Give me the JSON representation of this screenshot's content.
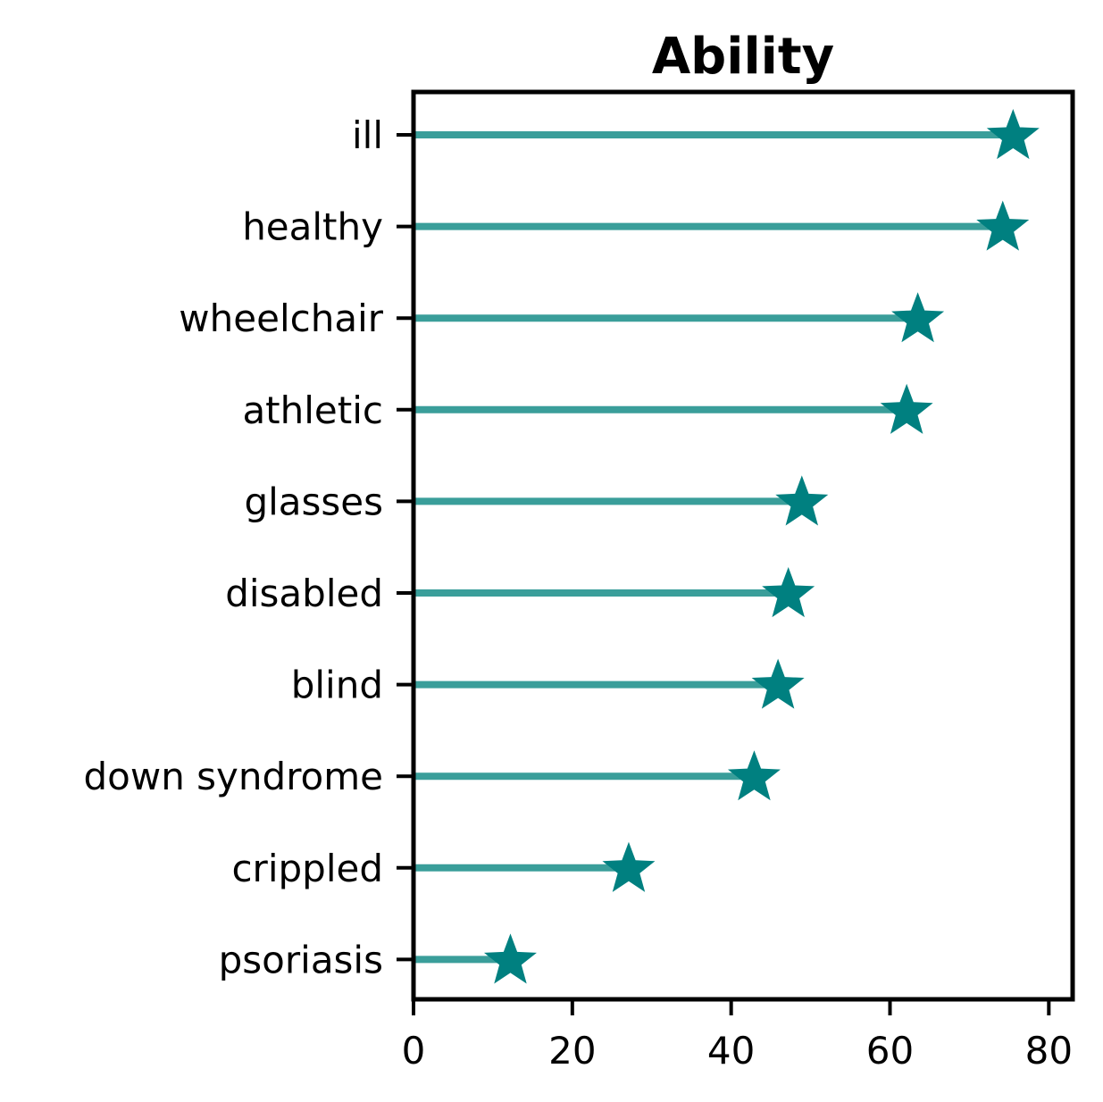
{
  "chart_data": {
    "type": "lollipop",
    "title": "Ability",
    "xlabel": "",
    "ylabel": "",
    "xlim": [
      0,
      83
    ],
    "xticks": [
      0,
      20,
      40,
      60,
      80
    ],
    "grid": false,
    "marker": "star",
    "colors": {
      "stem": "#3a9e9a",
      "marker": "#008080",
      "frame": "#000000"
    },
    "categories": [
      "ill",
      "healthy",
      "wheelchair",
      "athletic",
      "glasses",
      "disabled",
      "blind",
      "down syndrome",
      "crippled",
      "psoriasis"
    ],
    "values": [
      75.5,
      74.2,
      63.5,
      62.1,
      48.9,
      47.2,
      45.9,
      42.9,
      27.1,
      12.2
    ]
  }
}
